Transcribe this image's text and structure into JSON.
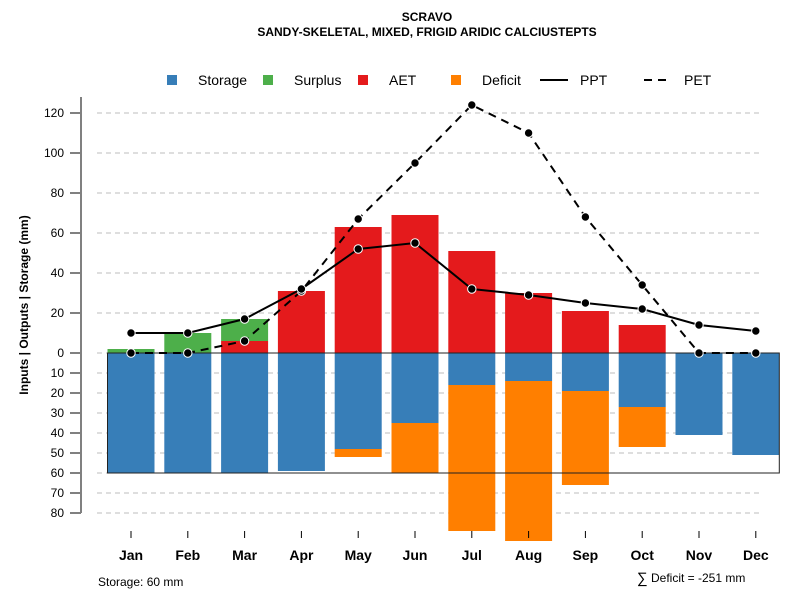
{
  "chart_data": {
    "type": "bar",
    "title": "SCRAVO",
    "subtitle": "SANDY-SKELETAL, MIXED, FRIGID ARIDIC CALCIUSTEPTS",
    "ylabel": "Inputs | Outputs | Storage     (mm)",
    "xlabel": "",
    "categories": [
      "Jan",
      "Feb",
      "Mar",
      "Apr",
      "May",
      "Jun",
      "Jul",
      "Aug",
      "Sep",
      "Oct",
      "Nov",
      "Dec"
    ],
    "upper_ylim": [
      0,
      120
    ],
    "lower_ylim": [
      0,
      80
    ],
    "upper_ticks": [
      "0",
      "20",
      "40",
      "60",
      "80",
      "100",
      "120"
    ],
    "lower_ticks": [
      "10",
      "20",
      "30",
      "40",
      "50",
      "60",
      "70",
      "80"
    ],
    "grid": true,
    "legend_position": "top",
    "legend": [
      {
        "label": "Storage",
        "kind": "box",
        "color": "#377EB8"
      },
      {
        "label": "Surplus",
        "kind": "box",
        "color": "#4DAF4A"
      },
      {
        "label": "AET",
        "kind": "box",
        "color": "#E41A1C"
      },
      {
        "label": "Deficit",
        "kind": "box",
        "color": "#FF7F00"
      },
      {
        "label": "PPT",
        "kind": "solid-line",
        "color": "#000000"
      },
      {
        "label": "PET",
        "kind": "dashed-line",
        "color": "#000000"
      }
    ],
    "series": [
      {
        "name": "Storage",
        "direction": "down",
        "color": "#377EB8",
        "values": [
          60,
          60,
          60,
          59,
          48,
          35,
          16,
          14,
          19,
          27,
          41,
          51
        ]
      },
      {
        "name": "Deficit",
        "direction": "down",
        "color": "#FF7F00",
        "values": [
          0,
          0,
          0,
          0,
          4,
          25,
          73,
          80,
          47,
          20,
          0,
          0
        ]
      },
      {
        "name": "AET",
        "direction": "up",
        "color": "#E41A1C",
        "values": [
          0,
          0,
          6,
          31,
          63,
          69,
          51,
          30,
          21,
          14,
          0,
          0
        ]
      },
      {
        "name": "Surplus",
        "direction": "up",
        "color": "#4DAF4A",
        "values": [
          2,
          10,
          11,
          0,
          0,
          0,
          0,
          0,
          0,
          0,
          0,
          0
        ]
      },
      {
        "name": "PPT",
        "kind": "line",
        "color": "#000000",
        "values": [
          10,
          10,
          17,
          32,
          52,
          55,
          32,
          29,
          25,
          22,
          14,
          11
        ]
      },
      {
        "name": "PET",
        "kind": "dashed-line",
        "color": "#000000",
        "values": [
          0,
          0,
          6,
          31,
          67,
          95,
          124,
          110,
          68,
          34,
          0,
          0
        ]
      }
    ],
    "storage_capacity": 60,
    "annotations": {
      "storage": "Storage: 60 mm",
      "deficit_sum_symbol": "∑",
      "deficit_sum": "Deficit = -251 mm"
    }
  }
}
